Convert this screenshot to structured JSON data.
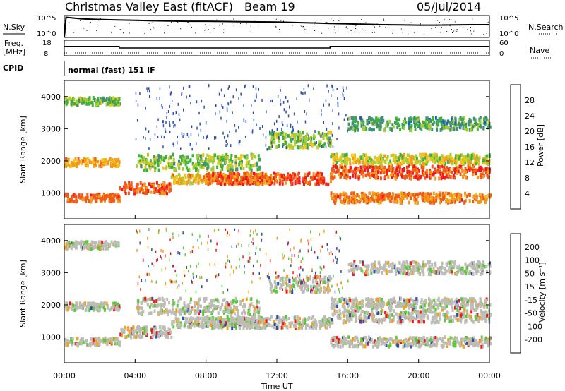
{
  "header": {
    "station": "Christmas Valley East (fitACF)",
    "beam": "Beam 19",
    "date": "05/Jul/2014"
  },
  "top_panels": {
    "nsky_label": "N.Sky",
    "nsearch_label": "N.Search",
    "nsky_ticks": [
      "10^5",
      "10^0"
    ],
    "nsearch_ticks": [
      "10^5",
      "10^0"
    ],
    "freq_label_1": "Freq.",
    "freq_label_2": "[MHz]",
    "freq_ticks": [
      "18",
      "8"
    ],
    "nave_label": "Nave",
    "nave_ticks": [
      "60",
      "0"
    ],
    "cpid_label": "CPID",
    "cpid_value": "normal (fast) 151 IF"
  },
  "chart_data": [
    {
      "type": "line",
      "name": "nsky",
      "x_hours": [
        0,
        0.1,
        1,
        2,
        3,
        4,
        5,
        6,
        7,
        8,
        9,
        10,
        11,
        12,
        13,
        14,
        15,
        16,
        17,
        18,
        19,
        20,
        21,
        22,
        23,
        24
      ],
      "values_norm": [
        0.0,
        0.92,
        0.85,
        0.82,
        0.8,
        0.78,
        0.76,
        0.75,
        0.74,
        0.74,
        0.73,
        0.72,
        0.71,
        0.7,
        0.68,
        0.66,
        0.64,
        0.62,
        0.6,
        0.58,
        0.57,
        0.56,
        0.56,
        0.57,
        0.58,
        0.58
      ]
    },
    {
      "type": "line",
      "name": "freq",
      "x_hours": [
        0,
        3.1,
        3.1,
        15,
        15,
        24
      ],
      "values_mhz": [
        14,
        14,
        13,
        13,
        14,
        14
      ],
      "ylim": [
        8,
        18
      ]
    },
    {
      "type": "heatmap",
      "name": "power",
      "xlabel": "",
      "ylabel": "Slant Range [km]",
      "ylim": [
        200,
        4500
      ],
      "yticks": [
        1000,
        2000,
        3000,
        4000
      ],
      "colorbar_label": "Power [dB]",
      "colorbar_ticks": [
        28,
        24,
        20,
        16,
        12,
        8,
        4
      ],
      "colorbar_range": [
        0,
        30
      ],
      "colors": [
        "#1a1aff",
        "#2a5ab8",
        "#3f8f7a",
        "#3fb03f",
        "#a8cc33",
        "#f2c31a",
        "#f29a1a",
        "#f25a1a",
        "#f21a1a"
      ]
    },
    {
      "type": "heatmap",
      "name": "velocity",
      "xlabel": "Time UT",
      "ylabel": "Slant Range [km]",
      "ylim": [
        200,
        4500
      ],
      "yticks": [
        1000,
        2000,
        3000,
        4000
      ],
      "x_ticks": [
        "00:00",
        "04:00",
        "08:00",
        "12:00",
        "16:00",
        "20:00",
        "00:00"
      ],
      "colorbar_label": "Velocity [m s⁻¹]",
      "colorbar_ticks": [
        200,
        100,
        50,
        15,
        -15,
        -50,
        -100,
        -200
      ],
      "colors": [
        "#1a1acc",
        "#1a66b3",
        "#1a9a4d",
        "#55cc33",
        "#bdbdb5",
        "#f2a21a",
        "#f2661a",
        "#f21a1a"
      ]
    }
  ],
  "colors": {
    "gray": "#bdbdb5",
    "green": "#5cc93a",
    "orange": "#f2a21a",
    "red": "#f21a1a",
    "blue": "#2f4fb0"
  }
}
